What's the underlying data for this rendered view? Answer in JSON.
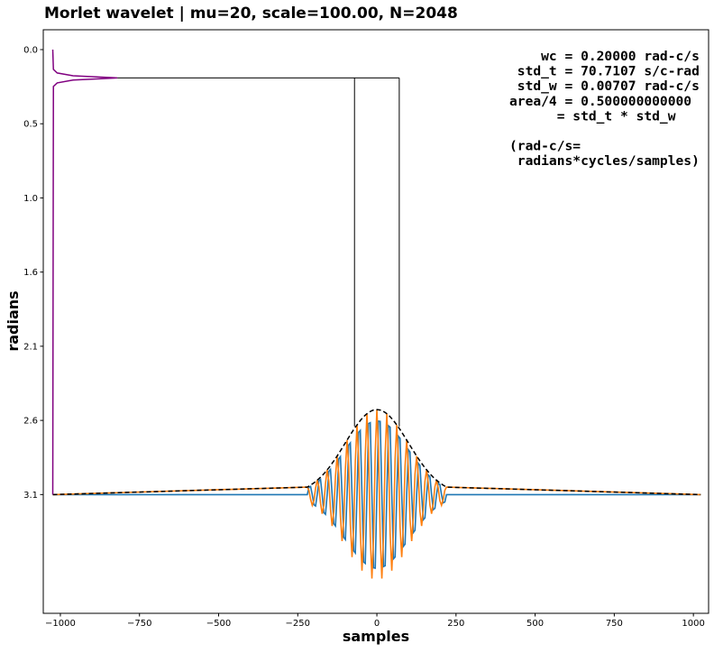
{
  "chart_data": {
    "type": "line",
    "title": "Morlet wavelet | mu=20, scale=100.00, N=2048",
    "xlabel": "samples",
    "ylabel": "radians",
    "y_inverted": true,
    "annotations": [
      [
        "    wc = 0.20000 rad-c/s",
        " std_t = 70.7107 s/c-rad",
        " std_w = 0.00707 rad-c/s",
        "area/4 = 0.500000000000",
        "      = std_t * std_w"
      ],
      [
        "(rad-c/s=",
        " radians*cycles/samples)"
      ]
    ],
    "xlim": [
      -1054,
      1048
    ],
    "ylim": [
      3.98,
      -0.14
    ],
    "xticks": [
      {
        "value": -1000,
        "label": "−1000"
      },
      {
        "value": -750,
        "label": "−750"
      },
      {
        "value": -500,
        "label": "−500"
      },
      {
        "value": -250,
        "label": "−250"
      },
      0,
      250,
      500,
      750,
      1000
    ],
    "yticks": [
      {
        "value": 0,
        "label": "0.0"
      },
      {
        "value": 0.5236,
        "label": "0.5"
      },
      {
        "value": 1.0472,
        "label": "1.0"
      },
      {
        "value": 1.5708,
        "label": "1.6"
      },
      {
        "value": 2.0944,
        "label": "2.1"
      },
      {
        "value": 2.618,
        "label": "2.6"
      },
      {
        "value": 3.1416,
        "label": "3.1"
      }
    ],
    "grid": false,
    "x": [
      -1024,
      -219.9,
      -214.7,
      -209.4,
      -204.2,
      -199.0,
      -193.7,
      -188.5,
      -183.3,
      -178.0,
      -172.8,
      -167.6,
      -162.3,
      -157.1,
      -151.8,
      -146.6,
      -141.4,
      -136.1,
      -130.9,
      -125.7,
      -120.4,
      -115.2,
      -110.0,
      -104.7,
      -99.5,
      -94.2,
      -89.0,
      -83.8,
      -78.5,
      -73.3,
      -68.1,
      -62.8,
      -57.6,
      -52.4,
      -47.1,
      -41.9,
      -36.7,
      -31.4,
      -26.2,
      -20.9,
      -15.7,
      -10.5,
      -5.2,
      0,
      5.2,
      10.5,
      15.7,
      20.9,
      26.2,
      31.4,
      36.7,
      41.9,
      47.1,
      52.4,
      57.6,
      62.8,
      68.1,
      73.3,
      78.5,
      83.8,
      89.0,
      94.2,
      99.5,
      104.7,
      110.0,
      115.2,
      120.4,
      125.7,
      130.9,
      136.1,
      141.4,
      146.6,
      151.8,
      157.1,
      162.3,
      167.6,
      172.8,
      178.0,
      183.3,
      188.5,
      193.7,
      199.0,
      204.2,
      209.4,
      214.7,
      219.9,
      1023
    ],
    "series": [
      {
        "color": "#1f77b4",
        "values": [
          3.142,
          3.142,
          3.09,
          3.084,
          3.142,
          3.214,
          3.222,
          3.142,
          3.045,
          3.035,
          3.142,
          3.269,
          3.281,
          3.142,
          2.978,
          2.964,
          3.142,
          3.348,
          3.363,
          3.142,
          2.89,
          2.874,
          3.142,
          3.443,
          3.459,
          3.142,
          2.792,
          2.777,
          3.142,
          3.539,
          3.554,
          3.142,
          2.702,
          2.689,
          3.142,
          3.618,
          3.628,
          3.142,
          2.64,
          2.634,
          3.142,
          3.659,
          3.661,
          3.142,
          2.623,
          2.625,
          3.142,
          3.65,
          3.644,
          3.142,
          2.656,
          2.666,
          3.142,
          3.595,
          3.582,
          3.142,
          2.73,
          2.745,
          3.142,
          3.507,
          3.492,
          3.142,
          2.825,
          2.841,
          3.142,
          3.41,
          3.394,
          3.142,
          2.921,
          2.936,
          3.142,
          3.32,
          3.306,
          3.142,
          3.003,
          3.015,
          3.142,
          3.249,
          3.239,
          3.142,
          3.062,
          3.07,
          3.142,
          3.2,
          3.194,
          3.142,
          3.142
        ]
      },
      {
        "color": "#ff7f0e",
        "values": [
          3.142,
          3.089,
          3.112,
          3.176,
          3.217,
          3.184,
          3.096,
          3.04,
          3.086,
          3.204,
          3.277,
          3.216,
          3.062,
          2.967,
          3.048,
          3.245,
          3.363,
          3.261,
          3.015,
          2.87,
          2.997,
          3.297,
          3.47,
          3.316,
          2.959,
          2.757,
          2.94,
          3.353,
          3.583,
          3.372,
          2.904,
          2.65,
          2.888,
          3.404,
          3.679,
          3.417,
          2.862,
          2.571,
          2.852,
          3.436,
          3.735,
          3.44,
          2.843,
          2.542,
          2.843,
          3.44,
          3.735,
          3.436,
          2.852,
          2.571,
          2.862,
          3.417,
          3.679,
          3.404,
          2.888,
          2.65,
          2.904,
          3.372,
          3.583,
          3.353,
          2.94,
          2.757,
          2.959,
          3.316,
          3.47,
          3.297,
          2.997,
          2.87,
          3.015,
          3.261,
          3.363,
          3.245,
          3.048,
          2.967,
          3.062,
          3.216,
          3.277,
          3.204,
          3.086,
          3.04,
          3.096,
          3.184,
          3.217,
          3.176,
          3.112,
          3.089,
          3.142
        ]
      },
      {
        "color": "#000000",
        "dashed": true,
        "values": [
          3.142,
          3.089,
          3.082,
          3.075,
          3.067,
          3.059,
          3.05,
          3.04,
          3.03,
          3.019,
          3.007,
          2.995,
          2.981,
          2.967,
          2.953,
          2.937,
          2.921,
          2.904,
          2.887,
          2.87,
          2.851,
          2.833,
          2.814,
          2.795,
          2.776,
          2.757,
          2.738,
          2.72,
          2.701,
          2.683,
          2.666,
          2.65,
          2.634,
          2.619,
          2.605,
          2.592,
          2.581,
          2.571,
          2.562,
          2.555,
          2.549,
          2.545,
          2.543,
          2.542,
          2.543,
          2.545,
          2.549,
          2.555,
          2.562,
          2.571,
          2.581,
          2.592,
          2.605,
          2.619,
          2.634,
          2.65,
          2.666,
          2.683,
          2.701,
          2.72,
          2.738,
          2.757,
          2.776,
          2.795,
          2.814,
          2.833,
          2.851,
          2.87,
          2.887,
          2.904,
          2.921,
          2.937,
          2.953,
          2.967,
          2.981,
          2.995,
          3.007,
          3.019,
          3.03,
          3.04,
          3.05,
          3.059,
          3.067,
          3.075,
          3.082,
          3.089,
          3.142
        ]
      },
      {
        "color": "#800080",
        "x": [
          -1024,
          -1022,
          -1010,
          -960,
          -820,
          -960,
          -1010,
          -1022,
          -1024
        ],
        "values": [
          0,
          0.14,
          0.165,
          0.185,
          0.2,
          0.215,
          0.235,
          0.26,
          3.142
        ]
      },
      {
        "color": "#000000",
        "x": [
          -820,
          70.7
        ],
        "values": [
          0.2,
          0.2
        ]
      },
      {
        "color": "#000000",
        "x": [
          -70.7,
          -70.7
        ],
        "values": [
          0.2,
          2.66
        ]
      },
      {
        "color": "#000000",
        "x": [
          70.7,
          70.7
        ],
        "values": [
          0.2,
          2.66
        ]
      }
    ]
  }
}
